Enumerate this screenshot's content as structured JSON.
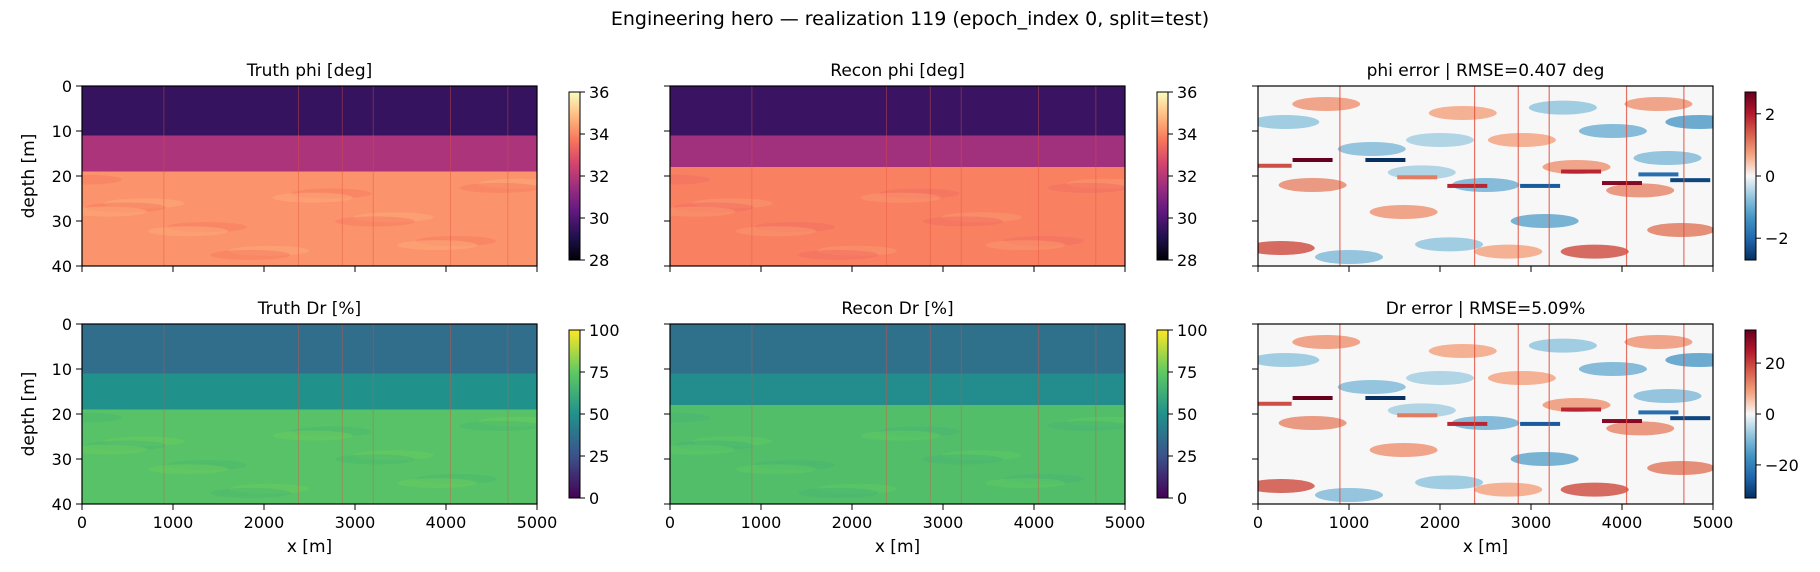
{
  "figure": {
    "title": "Engineering hero — realization 119 (epoch_index 0, split=test)"
  },
  "colors": {
    "wells": "#e05040",
    "magma": [
      "#000004",
      "#221150",
      "#5f187f",
      "#982d80",
      "#d3436e",
      "#f8765c",
      "#febb81",
      "#fcfdbf"
    ],
    "viridis": [
      "#440154",
      "#3b528b",
      "#21918c",
      "#5ec962",
      "#fde725"
    ],
    "rdbu_r": [
      "#053061",
      "#2166ac",
      "#4393c3",
      "#92c5de",
      "#f7f7f7",
      "#f4a582",
      "#d6604d",
      "#b2182b",
      "#67001f"
    ]
  },
  "chart_data": [
    {
      "type": "heatmap",
      "id": "truth_phi",
      "title": "Truth phi [deg]",
      "xlabel": "",
      "ylabel": "depth [m]",
      "xlim": [
        0,
        5000
      ],
      "ylim": [
        40,
        0
      ],
      "xticks": [],
      "yticks": [
        0,
        10,
        20,
        30,
        40
      ],
      "colormap": "magma",
      "vmin": 28,
      "vmax": 36,
      "cbar_ticks": [
        28,
        30,
        32,
        34,
        36
      ],
      "layers": [
        {
          "from_depth": 0,
          "to_depth": 11,
          "value": 29.5
        },
        {
          "from_depth": 11,
          "to_depth": 19,
          "value": 31.8
        },
        {
          "from_depth": 19,
          "to_depth": 40,
          "value": 34.2
        }
      ],
      "wells_x": [
        900,
        2380,
        2860,
        3200,
        4050,
        4680
      ]
    },
    {
      "type": "heatmap",
      "id": "recon_phi",
      "title": "Recon phi [deg]",
      "xlabel": "",
      "ylabel": "",
      "xlim": [
        0,
        5000
      ],
      "ylim": [
        40,
        0
      ],
      "xticks": [],
      "yticks": [],
      "colormap": "magma",
      "vmin": 28,
      "vmax": 36,
      "cbar_ticks": [
        28,
        30,
        32,
        34,
        36
      ],
      "layers": [
        {
          "from_depth": 0,
          "to_depth": 11,
          "value": 29.6
        },
        {
          "from_depth": 11,
          "to_depth": 18,
          "value": 31.6
        },
        {
          "from_depth": 18,
          "to_depth": 40,
          "value": 33.9
        }
      ],
      "wells_x": [
        900,
        2380,
        2860,
        3200,
        4050,
        4680
      ]
    },
    {
      "type": "heatmap",
      "id": "phi_error",
      "title": "phi error  |  RMSE=0.407 deg",
      "xlabel": "",
      "ylabel": "",
      "xlim": [
        0,
        5000
      ],
      "ylim": [
        40,
        0
      ],
      "xticks": [],
      "yticks": [],
      "colormap": "rdbu_r",
      "vmin": -2.7,
      "vmax": 2.7,
      "cbar_ticks": [
        -2,
        0,
        2
      ],
      "layers": [
        {
          "from_depth": 0,
          "to_depth": 40,
          "value": 0
        }
      ],
      "wells_x": [
        900,
        2380,
        2860,
        3200,
        4050,
        4680
      ]
    },
    {
      "type": "heatmap",
      "id": "truth_dr",
      "title": "Truth Dr [%]",
      "xlabel": "x [m]",
      "ylabel": "depth [m]",
      "xlim": [
        0,
        5000
      ],
      "ylim": [
        40,
        0
      ],
      "xticks": [
        0,
        1000,
        2000,
        3000,
        4000,
        5000
      ],
      "yticks": [
        0,
        10,
        20,
        30,
        40
      ],
      "colormap": "viridis",
      "vmin": 0,
      "vmax": 100,
      "cbar_ticks": [
        0,
        25,
        50,
        75,
        100
      ],
      "layers": [
        {
          "from_depth": 0,
          "to_depth": 11,
          "value": 36
        },
        {
          "from_depth": 11,
          "to_depth": 19,
          "value": 50
        },
        {
          "from_depth": 19,
          "to_depth": 40,
          "value": 72
        }
      ],
      "wells_x": [
        900,
        2380,
        2860,
        3200,
        4050,
        4680
      ]
    },
    {
      "type": "heatmap",
      "id": "recon_dr",
      "title": "Recon Dr [%]",
      "xlabel": "x [m]",
      "ylabel": "",
      "xlim": [
        0,
        5000
      ],
      "ylim": [
        40,
        0
      ],
      "xticks": [
        0,
        1000,
        2000,
        3000,
        4000,
        5000
      ],
      "yticks": [],
      "colormap": "viridis",
      "vmin": 0,
      "vmax": 100,
      "cbar_ticks": [
        0,
        25,
        50,
        75,
        100
      ],
      "layers": [
        {
          "from_depth": 0,
          "to_depth": 11,
          "value": 37
        },
        {
          "from_depth": 11,
          "to_depth": 18,
          "value": 48
        },
        {
          "from_depth": 18,
          "to_depth": 40,
          "value": 70
        }
      ],
      "wells_x": [
        900,
        2380,
        2860,
        3200,
        4050,
        4680
      ]
    },
    {
      "type": "heatmap",
      "id": "dr_error",
      "title": "Dr error  |  RMSE=5.09%",
      "xlabel": "x [m]",
      "ylabel": "",
      "xlim": [
        0,
        5000
      ],
      "ylim": [
        40,
        0
      ],
      "xticks": [
        0,
        1000,
        2000,
        3000,
        4000,
        5000
      ],
      "yticks": [],
      "colormap": "rdbu_r",
      "vmin": -33,
      "vmax": 33,
      "cbar_ticks": [
        -20,
        0,
        20
      ],
      "layers": [
        {
          "from_depth": 0,
          "to_depth": 40,
          "value": 0
        }
      ],
      "wells_x": [
        900,
        2380,
        2860,
        3200,
        4050,
        4680
      ]
    }
  ]
}
